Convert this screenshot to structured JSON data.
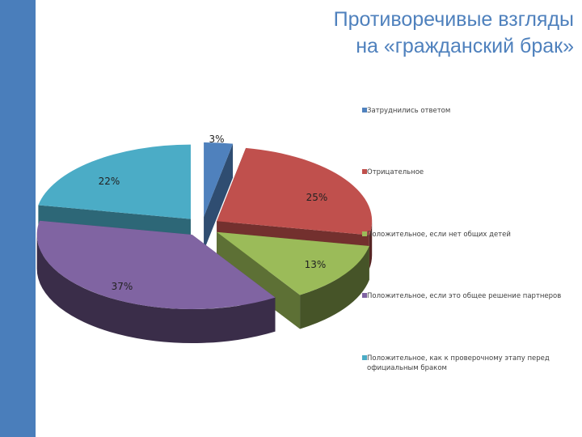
{
  "title": {
    "line1": "Противоречивые взгляды",
    "line2": "на «гражданский брак»"
  },
  "chart_data": {
    "type": "pie",
    "style": "3d-exploded",
    "slices": [
      {
        "label": "Затруднились ответом",
        "value": 3,
        "value_label": "3%",
        "color": "#4f81bd"
      },
      {
        "label": "Отрицательное",
        "value": 25,
        "value_label": "25%",
        "color": "#c0504d"
      },
      {
        "label": "Положительное, если нет общих детей",
        "value": 13,
        "value_label": "13%",
        "color": "#9bbb59"
      },
      {
        "label": "Положительное, если это общее решение партнеров",
        "value": 37,
        "value_label": "37%",
        "color": "#8064a2"
      },
      {
        "label": "Положительное, как к проверочному этапу перед официальным браком",
        "value": 22,
        "value_label": "22%",
        "color": "#4bacc6"
      }
    ],
    "legend_position": "right"
  }
}
